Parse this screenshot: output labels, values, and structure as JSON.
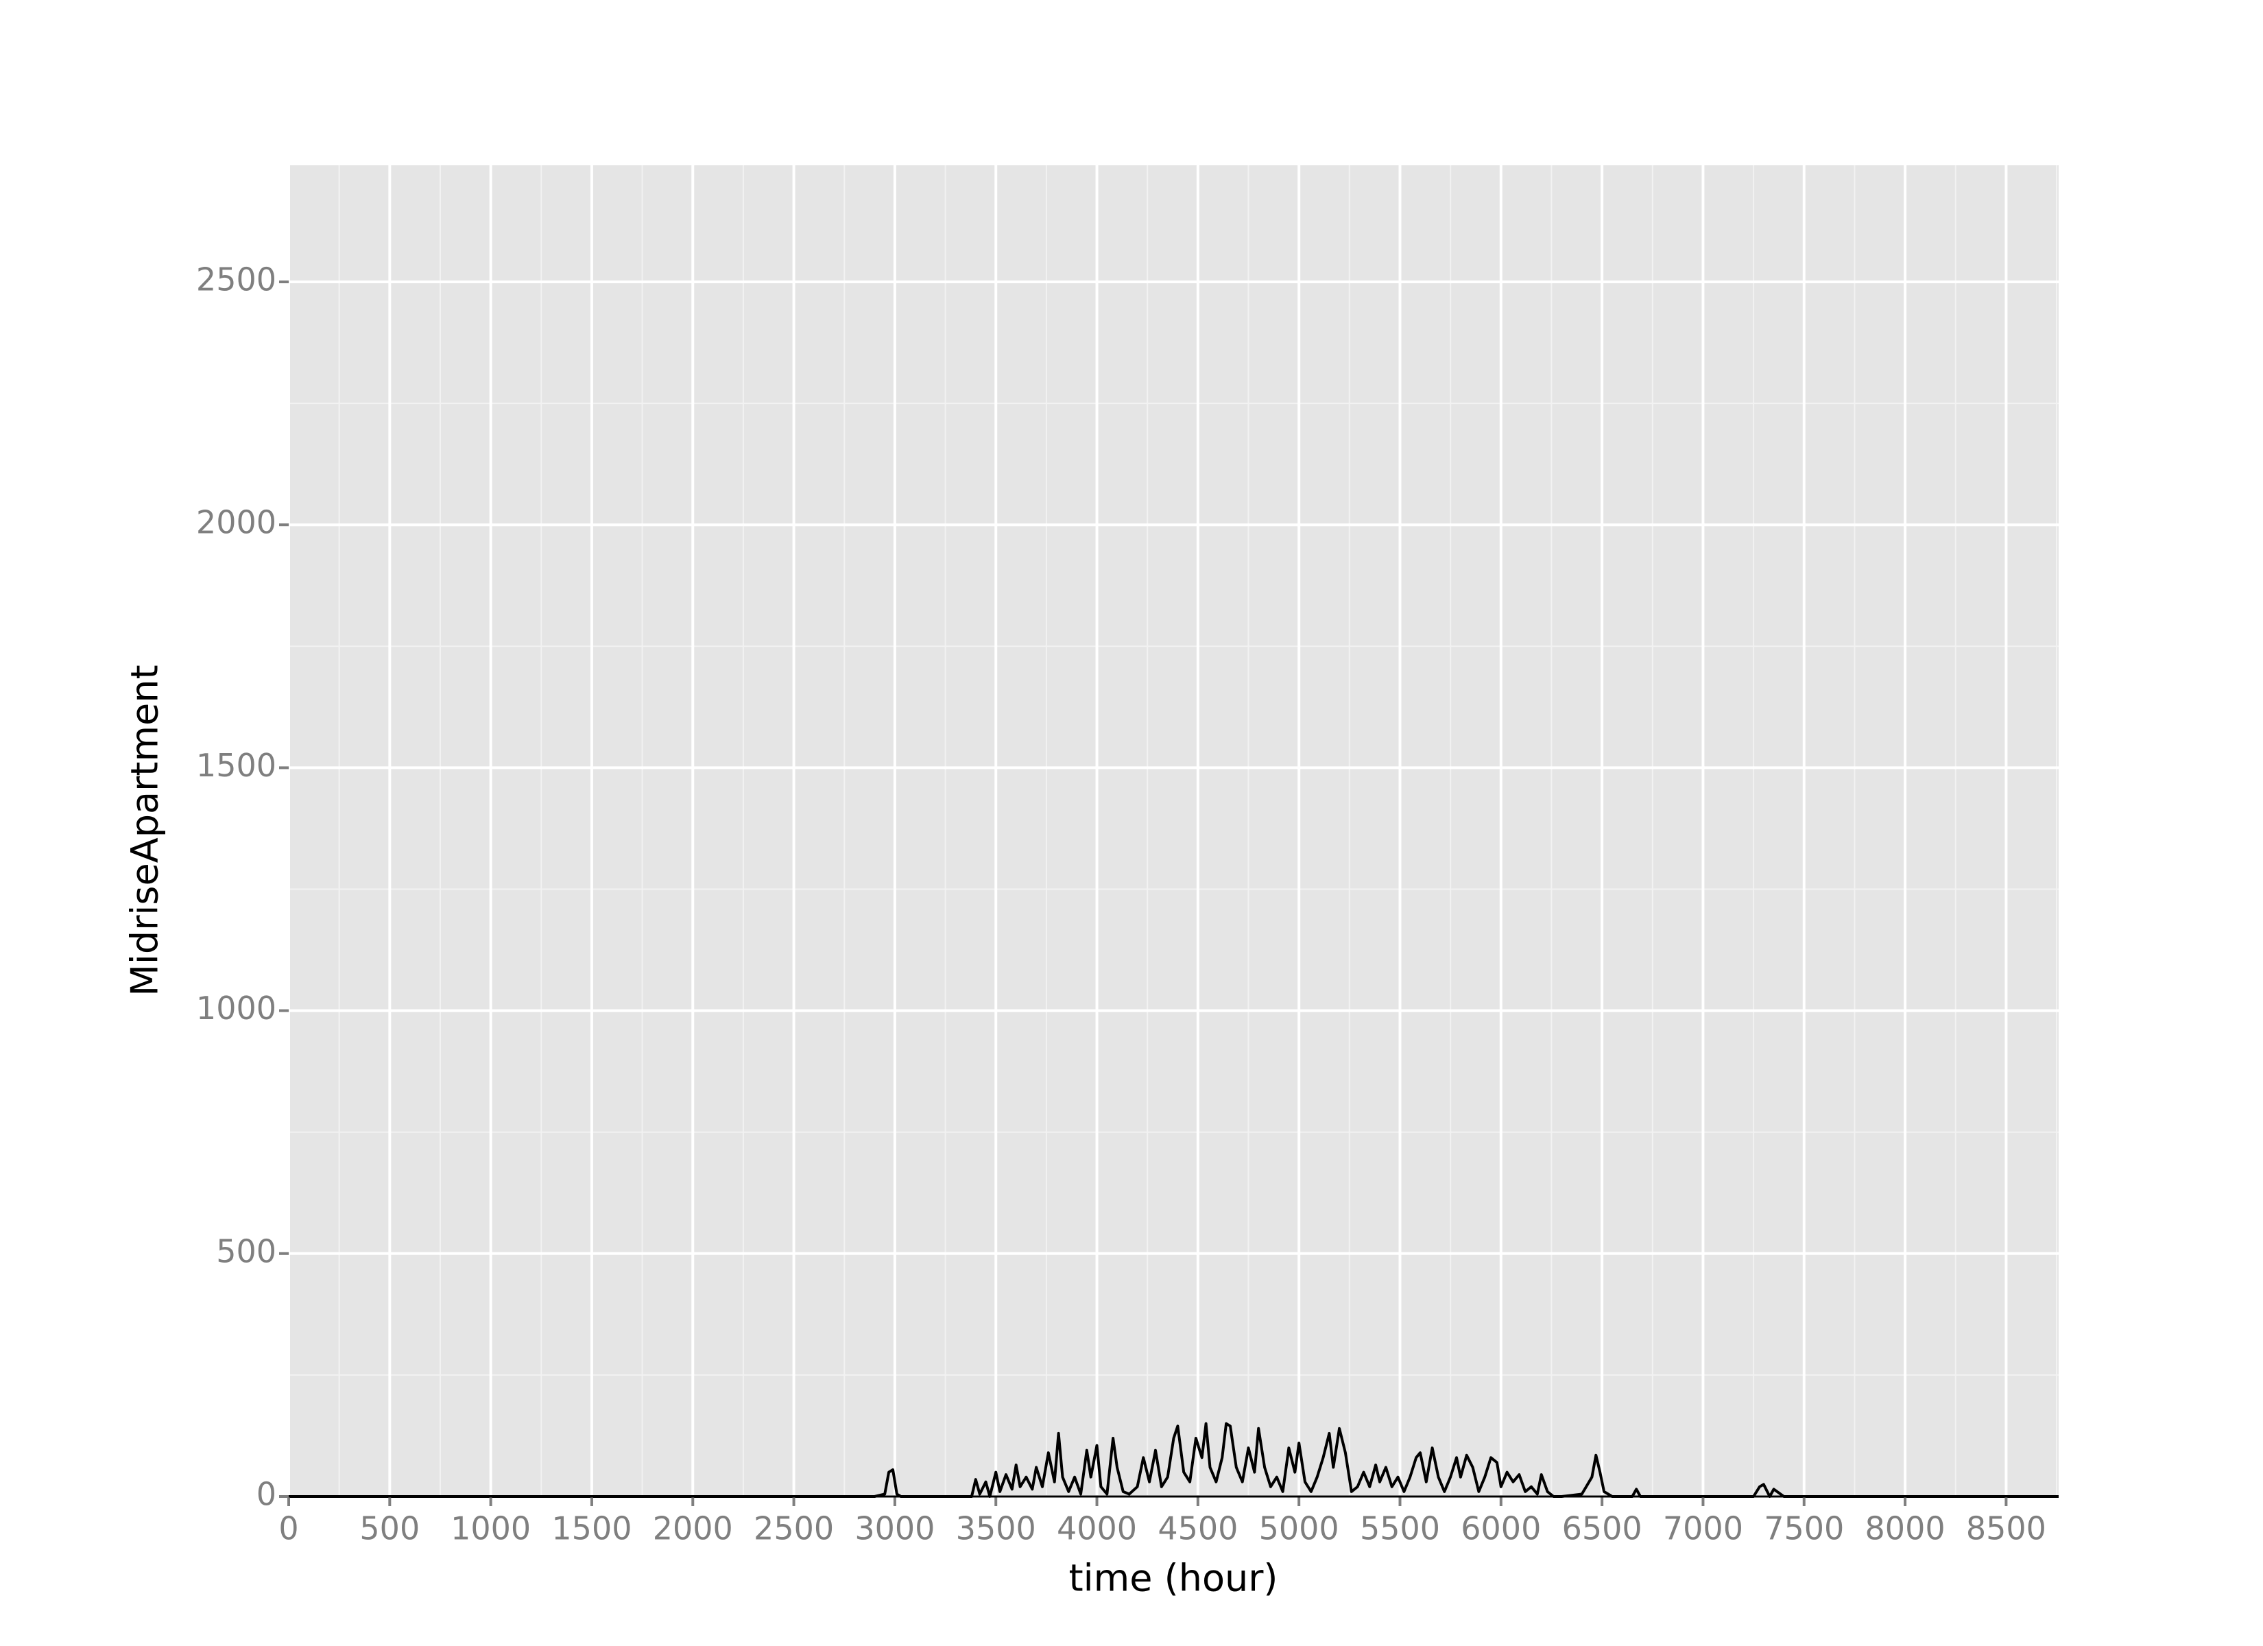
{
  "chart_data": {
    "type": "line",
    "xlabel": "time (hour)",
    "ylabel": "MidriseApartment",
    "x": [
      0,
      2900,
      2950,
      2970,
      2990,
      3010,
      3030,
      3050,
      3380,
      3400,
      3420,
      3450,
      3470,
      3500,
      3520,
      3550,
      3580,
      3600,
      3620,
      3650,
      3680,
      3700,
      3730,
      3760,
      3790,
      3810,
      3830,
      3860,
      3890,
      3920,
      3950,
      3970,
      4000,
      4020,
      4050,
      4080,
      4100,
      4130,
      4160,
      4200,
      4230,
      4260,
      4290,
      4320,
      4350,
      4380,
      4400,
      4430,
      4460,
      4490,
      4520,
      4540,
      4560,
      4590,
      4620,
      4640,
      4660,
      4690,
      4720,
      4750,
      4780,
      4800,
      4830,
      4860,
      4890,
      4920,
      4950,
      4980,
      5000,
      5030,
      5060,
      5090,
      5120,
      5150,
      5170,
      5200,
      5230,
      5260,
      5290,
      5320,
      5350,
      5380,
      5400,
      5430,
      5460,
      5490,
      5520,
      5550,
      5580,
      5600,
      5630,
      5660,
      5690,
      5720,
      5750,
      5780,
      5800,
      5830,
      5860,
      5890,
      5920,
      5950,
      5980,
      6000,
      6030,
      6060,
      6090,
      6120,
      6150,
      6180,
      6200,
      6230,
      6260,
      6300,
      6400,
      6450,
      6470,
      6490,
      6510,
      6550,
      6650,
      6670,
      6690,
      6750,
      7250,
      7280,
      7300,
      7330,
      7350,
      7400,
      8760
    ],
    "values": [
      0,
      0,
      5,
      50,
      55,
      5,
      0,
      0,
      0,
      35,
      5,
      30,
      0,
      50,
      10,
      45,
      15,
      65,
      20,
      40,
      15,
      60,
      20,
      90,
      30,
      130,
      40,
      10,
      40,
      5,
      95,
      40,
      105,
      20,
      5,
      120,
      60,
      10,
      5,
      20,
      80,
      30,
      95,
      20,
      40,
      120,
      145,
      50,
      30,
      120,
      80,
      150,
      60,
      30,
      80,
      150,
      145,
      60,
      30,
      100,
      50,
      140,
      60,
      20,
      40,
      10,
      100,
      50,
      110,
      30,
      10,
      40,
      80,
      130,
      60,
      140,
      90,
      10,
      20,
      50,
      20,
      65,
      30,
      60,
      20,
      40,
      10,
      40,
      80,
      90,
      30,
      100,
      40,
      10,
      40,
      80,
      40,
      85,
      60,
      10,
      40,
      80,
      70,
      20,
      50,
      30,
      45,
      10,
      20,
      5,
      45,
      10,
      0,
      0,
      5,
      40,
      85,
      50,
      10,
      0,
      0,
      15,
      0,
      0,
      0,
      20,
      25,
      0,
      15,
      0,
      0
    ],
    "color": "#000000",
    "xlim": [
      0,
      8760
    ],
    "ylim": [
      0,
      2740
    ],
    "xticks": [
      0,
      500,
      1000,
      1500,
      2000,
      2500,
      3000,
      3500,
      4000,
      4500,
      5000,
      5500,
      6000,
      6500,
      7000,
      7500,
      8000,
      8500
    ],
    "yticks": [
      0,
      500,
      1000,
      1500,
      2000,
      2500
    ],
    "grid": true
  }
}
